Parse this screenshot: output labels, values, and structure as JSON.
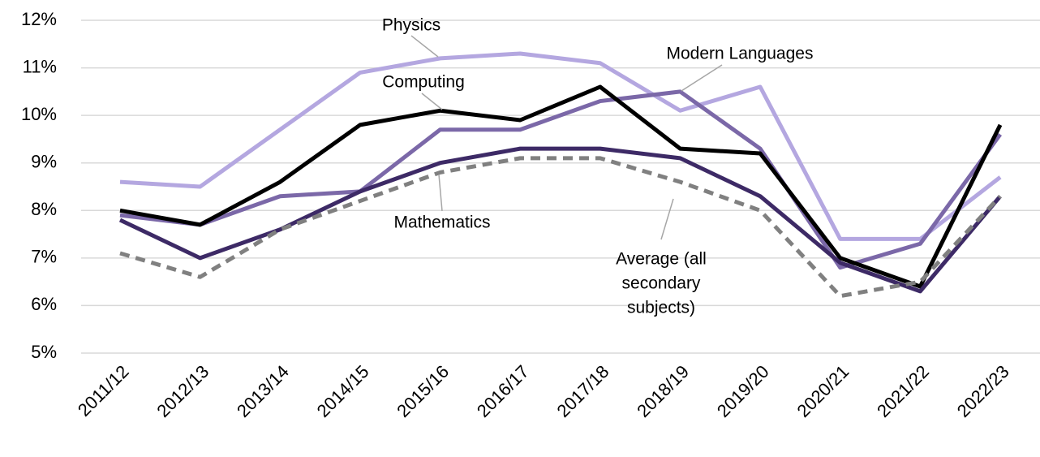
{
  "chart_data": {
    "type": "line",
    "categories": [
      "2011/12",
      "2012/13",
      "2013/14",
      "2014/15",
      "2015/16",
      "2016/17",
      "2017/18",
      "2018/19",
      "2019/20",
      "2020/21",
      "2021/22",
      "2022/23"
    ],
    "ylim": [
      5,
      12
    ],
    "yticks": [
      {
        "value": 5,
        "label": "5%"
      },
      {
        "value": 6,
        "label": "6%"
      },
      {
        "value": 7,
        "label": "7%"
      },
      {
        "value": 8,
        "label": "8%"
      },
      {
        "value": 9,
        "label": "9%"
      },
      {
        "value": 10,
        "label": "10%"
      },
      {
        "value": 11,
        "label": "11%"
      },
      {
        "value": 12,
        "label": "12%"
      }
    ],
    "grid": true,
    "series": [
      {
        "name": "Physics",
        "color": "#b4a7e0",
        "values": [
          8.6,
          8.5,
          9.7,
          10.9,
          11.2,
          11.3,
          11.1,
          10.1,
          10.6,
          7.4,
          7.4,
          8.7
        ]
      },
      {
        "name": "Modern Languages",
        "color": "#7b68a8",
        "values": [
          7.9,
          7.7,
          8.3,
          8.4,
          9.7,
          9.7,
          10.3,
          10.5,
          9.3,
          6.8,
          7.3,
          9.6
        ]
      },
      {
        "name": "Computing",
        "color": "#000000",
        "values": [
          8.0,
          7.7,
          8.6,
          9.8,
          10.1,
          9.9,
          10.6,
          9.3,
          9.2,
          7.0,
          6.4,
          9.8
        ]
      },
      {
        "name": "Mathematics",
        "color": "#3d2a66",
        "values": [
          7.8,
          7.0,
          7.6,
          8.4,
          9.0,
          9.3,
          9.3,
          9.1,
          8.3,
          6.9,
          6.3,
          8.3
        ]
      },
      {
        "name": [
          "Average (all",
          "secondary",
          "subjects)"
        ],
        "color": "#808080",
        "dashed": true,
        "values": [
          7.1,
          6.6,
          7.6,
          8.2,
          8.8,
          9.1,
          9.1,
          8.6,
          8.0,
          6.2,
          6.5,
          8.3
        ]
      }
    ]
  }
}
